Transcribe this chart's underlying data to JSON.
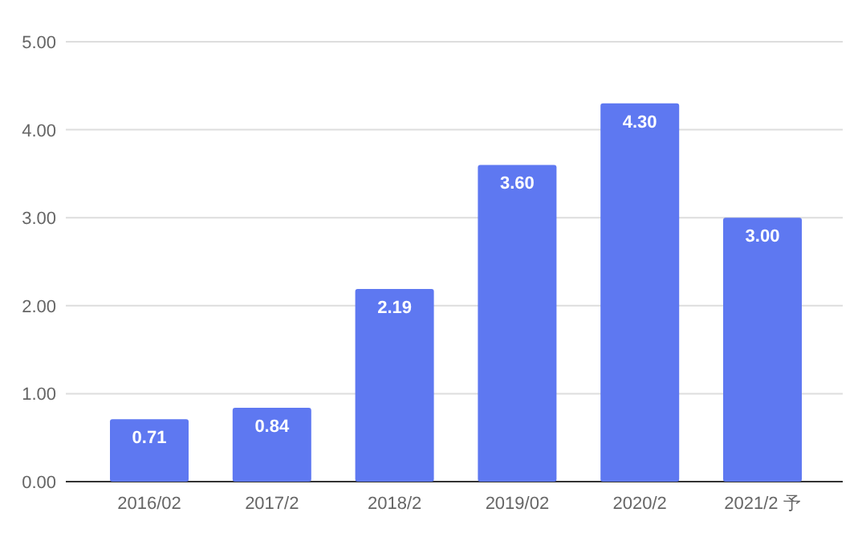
{
  "chart_data": {
    "type": "bar",
    "categories": [
      "2016/02",
      "2017/2",
      "2018/2",
      "2019/02",
      "2020/2",
      "2021/2 予"
    ],
    "values": [
      0.71,
      0.84,
      2.19,
      3.6,
      4.3,
      3.0
    ],
    "value_labels": [
      "0.71",
      "0.84",
      "2.19",
      "3.60",
      "4.30",
      "3.00"
    ],
    "color": "#5e78f1",
    "ylim": [
      0,
      5
    ],
    "yticks": [
      {
        "value": 0,
        "label": "0.00"
      },
      {
        "value": 1,
        "label": "1.00"
      },
      {
        "value": 2,
        "label": "2.00"
      },
      {
        "value": 3,
        "label": "3.00"
      },
      {
        "value": 4,
        "label": "4.00"
      },
      {
        "value": 5,
        "label": "5.00"
      }
    ],
    "grid": "y"
  }
}
